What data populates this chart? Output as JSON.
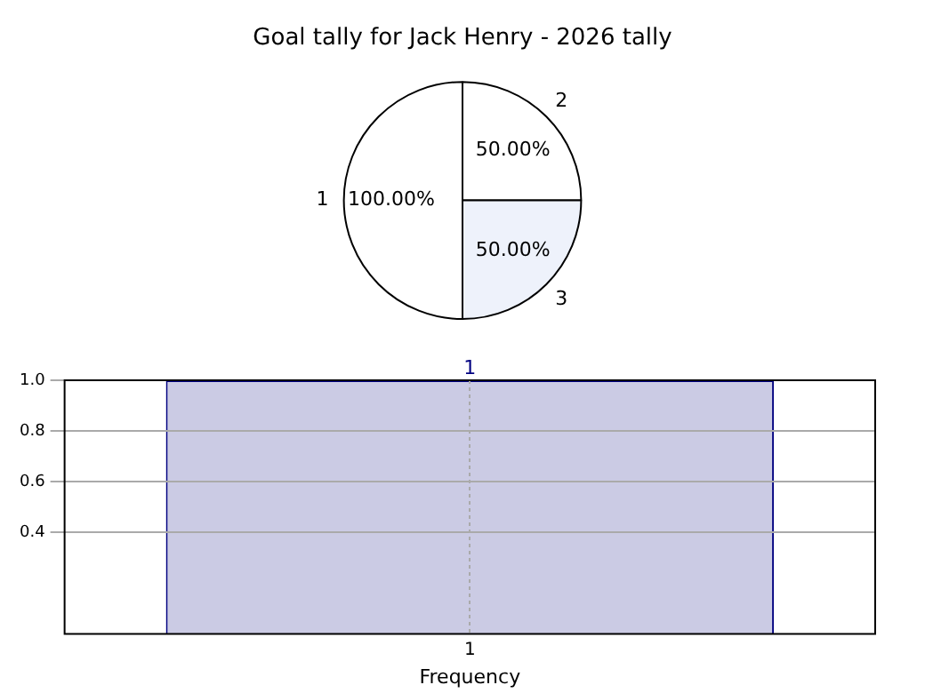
{
  "chart_data": [
    {
      "type": "pie",
      "title": "Goal tally for Jack Henry - 2026 tally",
      "categories": [
        "1",
        "2",
        "3"
      ],
      "values": [
        100,
        50,
        50
      ],
      "colors": [
        "#ffffff",
        "#ffffff",
        "#eef2fb"
      ],
      "value_labels": [
        "100.00%",
        "50.00%",
        "50.00%"
      ]
    },
    {
      "type": "bar",
      "categories": [
        "1"
      ],
      "values": [
        1.0
      ],
      "color": "#cbcbe4",
      "ylim": [
        0,
        1.0
      ],
      "yticks": [
        0.4,
        0.6,
        0.8,
        {
          "value": 1,
          "label": "1.0"
        }
      ],
      "grid": true,
      "xlabel": "Frequency",
      "data_labels": true
    }
  ]
}
